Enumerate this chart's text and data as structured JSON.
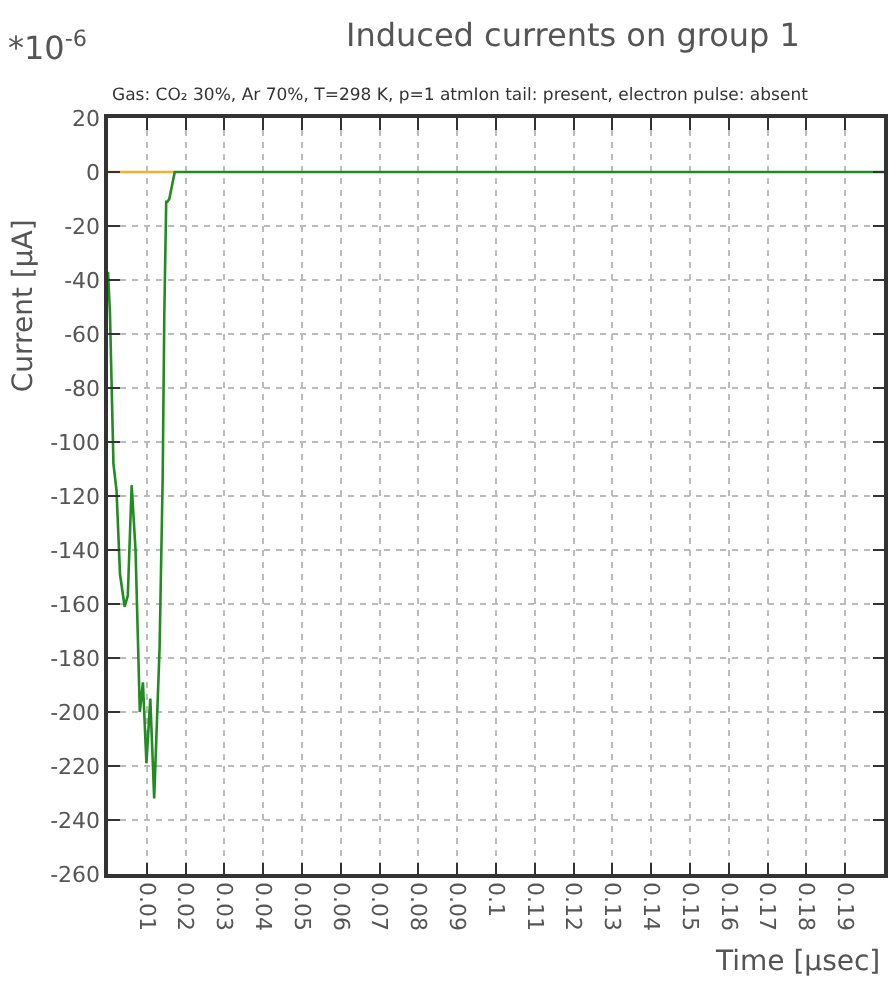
{
  "chart_data": {
    "type": "line",
    "title": "Induced currents on group 1",
    "subtitle": "Gas: CO₂ 30%, Ar 70%, T=298 K, p=1 atmIon tail: present, electron pulse: absent",
    "xlabel": "Time [μsec]",
    "ylabel": "Current [μA]",
    "annotations": [
      "*10$^{-6}$"
    ],
    "xlim": [
      0,
      0.2
    ],
    "xticks": [
      0.01,
      0.02,
      0.03,
      0.04,
      0.05,
      0.06,
      0.07,
      0.08,
      0.09,
      0.1,
      0.11,
      0.12,
      0.13,
      0.14,
      0.15,
      0.16,
      0.17,
      0.18,
      0.19
    ],
    "ylim": [
      -260,
      20
    ],
    "yticks": [
      20,
      0,
      -20,
      -40,
      -60,
      -80,
      -100,
      -120,
      -140,
      -160,
      -180,
      -200,
      -220,
      -240,
      -260
    ],
    "grid": true,
    "marker": "none",
    "line_style": "solid",
    "series": [
      {
        "color": "#f0b030",
        "x": [
          0,
          0.0172
        ],
        "values": [
          0,
          0
        ]
      },
      {
        "color": "#228b22",
        "x": [
          0,
          0.0005,
          0.0014,
          0.0022,
          0.0031,
          0.0043,
          0.0051,
          0.0061,
          0.0071,
          0.0082,
          0.009,
          0.0099,
          0.0109,
          0.0119,
          0.0133,
          0.0141,
          0.0145,
          0.015,
          0.0153,
          0.0158,
          0.0172,
          0.2
        ],
        "values": [
          -37,
          -52,
          -108,
          -118,
          -149,
          -161,
          -157,
          -116,
          -140,
          -200,
          -189,
          -219,
          -195,
          -232,
          -176,
          -113,
          -54,
          -11,
          -11,
          -10,
          0,
          0
        ]
      }
    ]
  }
}
